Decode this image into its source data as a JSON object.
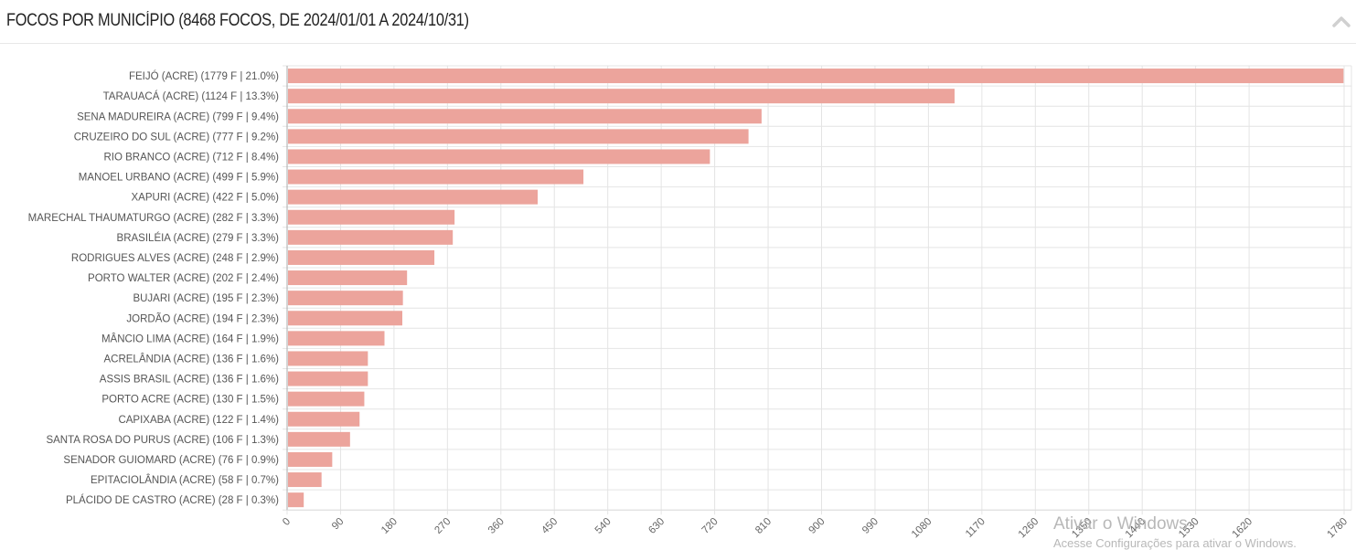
{
  "panel": {
    "title": "FOCOS POR MUNICÍPIO (8468 FOCOS, DE 2024/01/01 A 2024/10/31)"
  },
  "chart_data": {
    "type": "bar",
    "orientation": "horizontal",
    "categories": [
      "FEIJÓ (ACRE) (1779 F | 21.0%)",
      "TARAUACÁ (ACRE) (1124 F | 13.3%)",
      "SENA MADUREIRA (ACRE) (799 F | 9.4%)",
      "CRUZEIRO DO SUL (ACRE) (777 F | 9.2%)",
      "RIO BRANCO (ACRE) (712 F | 8.4%)",
      "MANOEL URBANO (ACRE) (499 F | 5.9%)",
      "XAPURI (ACRE) (422 F | 5.0%)",
      "MARECHAL THAUMATURGO (ACRE) (282 F | 3.3%)",
      "BRASILÉIA (ACRE) (279 F | 3.3%)",
      "RODRIGUES ALVES (ACRE) (248 F | 2.9%)",
      "PORTO WALTER (ACRE) (202 F | 2.4%)",
      "BUJARI (ACRE) (195 F | 2.3%)",
      "JORDÃO (ACRE) (194 F | 2.3%)",
      "MÂNCIO LIMA (ACRE) (164 F | 1.9%)",
      "ACRELÂNDIA (ACRE) (136 F | 1.6%)",
      "ASSIS BRASIL (ACRE) (136 F | 1.6%)",
      "PORTO ACRE (ACRE) (130 F | 1.5%)",
      "CAPIXABA (ACRE) (122 F | 1.4%)",
      "SANTA ROSA DO PURUS (ACRE) (106 F | 1.3%)",
      "SENADOR GUIOMARD (ACRE) (76 F | 0.9%)",
      "EPITACIOLÂNDIA (ACRE) (58 F | 0.7%)",
      "PLÁCIDO DE CASTRO (ACRE) (28 F | 0.3%)"
    ],
    "values": [
      1779,
      1124,
      799,
      777,
      712,
      499,
      422,
      282,
      279,
      248,
      202,
      195,
      194,
      164,
      136,
      136,
      130,
      122,
      106,
      76,
      58,
      28
    ],
    "xlim": [
      0,
      1780
    ],
    "xticks": [
      "0",
      "90",
      "180",
      "270",
      "360",
      "450",
      "540",
      "630",
      "720",
      "810",
      "900",
      "990",
      "1080",
      "1170",
      "1260",
      "1350",
      "1440",
      "1530",
      "1620",
      "1780"
    ],
    "xtick_values": [
      0,
      90,
      180,
      270,
      360,
      450,
      540,
      630,
      720,
      810,
      900,
      990,
      1080,
      1170,
      1260,
      1350,
      1440,
      1530,
      1620,
      1780
    ],
    "grid": true,
    "bar_color": "#eca49c",
    "grid_color": "#e4e4e4"
  },
  "watermark": {
    "line1": "Ativar o Windows",
    "line2": "Acesse Configurações para ativar o Windows."
  }
}
